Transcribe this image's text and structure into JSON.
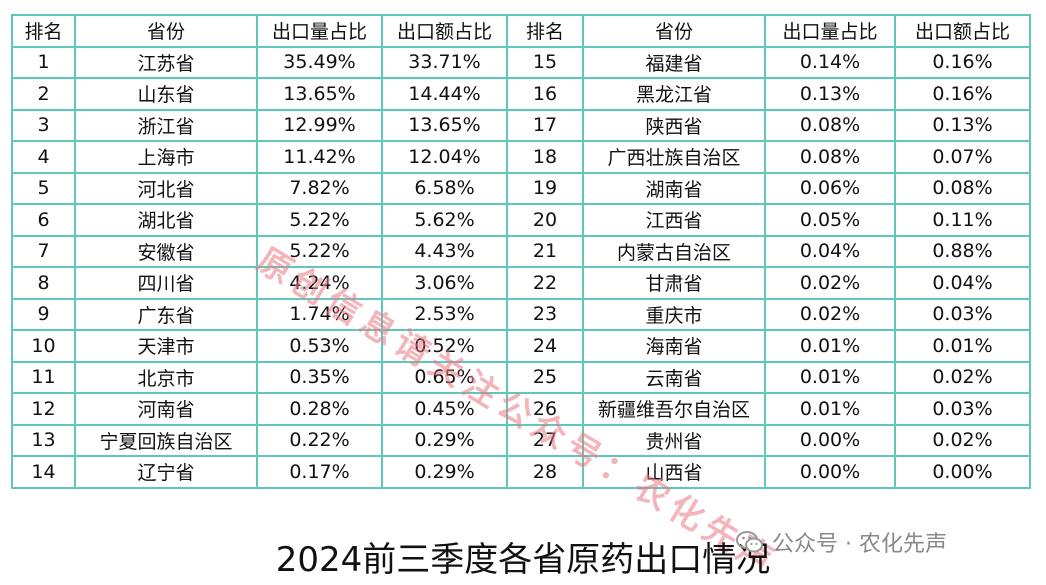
{
  "table": {
    "headers": [
      "排名",
      "省份",
      "出口量占比",
      "出口额占比",
      "排名",
      "省份",
      "出口量占比",
      "出口额占比"
    ],
    "rows": [
      [
        "1",
        "江苏省",
        "35.49%",
        "33.71%",
        "15",
        "福建省",
        "0.14%",
        "0.16%"
      ],
      [
        "2",
        "山东省",
        "13.65%",
        "14.44%",
        "16",
        "黑龙江省",
        "0.13%",
        "0.16%"
      ],
      [
        "3",
        "浙江省",
        "12.99%",
        "13.65%",
        "17",
        "陕西省",
        "0.08%",
        "0.13%"
      ],
      [
        "4",
        "上海市",
        "11.42%",
        "12.04%",
        "18",
        "广西壮族自治区",
        "0.08%",
        "0.07%"
      ],
      [
        "5",
        "河北省",
        "7.82%",
        "6.58%",
        "19",
        "湖南省",
        "0.06%",
        "0.08%"
      ],
      [
        "6",
        "湖北省",
        "5.22%",
        "5.62%",
        "20",
        "江西省",
        "0.05%",
        "0.11%"
      ],
      [
        "7",
        "安徽省",
        "5.22%",
        "4.43%",
        "21",
        "内蒙古自治区",
        "0.04%",
        "0.88%"
      ],
      [
        "8",
        "四川省",
        "4.24%",
        "3.06%",
        "22",
        "甘肃省",
        "0.02%",
        "0.04%"
      ],
      [
        "9",
        "广东省",
        "1.74%",
        "2.53%",
        "23",
        "重庆市",
        "0.02%",
        "0.03%"
      ],
      [
        "10",
        "天津市",
        "0.53%",
        "0.52%",
        "24",
        "海南省",
        "0.01%",
        "0.01%"
      ],
      [
        "11",
        "北京市",
        "0.35%",
        "0.65%",
        "25",
        "云南省",
        "0.01%",
        "0.02%"
      ],
      [
        "12",
        "河南省",
        "0.28%",
        "0.45%",
        "26",
        "新疆维吾尔自治区",
        "0.01%",
        "0.03%"
      ],
      [
        "13",
        "宁夏回族自治区",
        "0.22%",
        "0.29%",
        "27",
        "贵州省",
        "0.00%",
        "0.02%"
      ],
      [
        "14",
        "辽宁省",
        "0.17%",
        "0.29%",
        "28",
        "山西省",
        "0.00%",
        "0.00%"
      ]
    ]
  },
  "watermark": "原创信息请关注公众号：农化先声",
  "caption": "2024前三季度各省原药出口情况",
  "credit": {
    "icon": "wechat-icon",
    "text": "公众号 · 农化先声"
  },
  "colors": {
    "border": "#5fc8ba",
    "watermark": "#e97882"
  }
}
